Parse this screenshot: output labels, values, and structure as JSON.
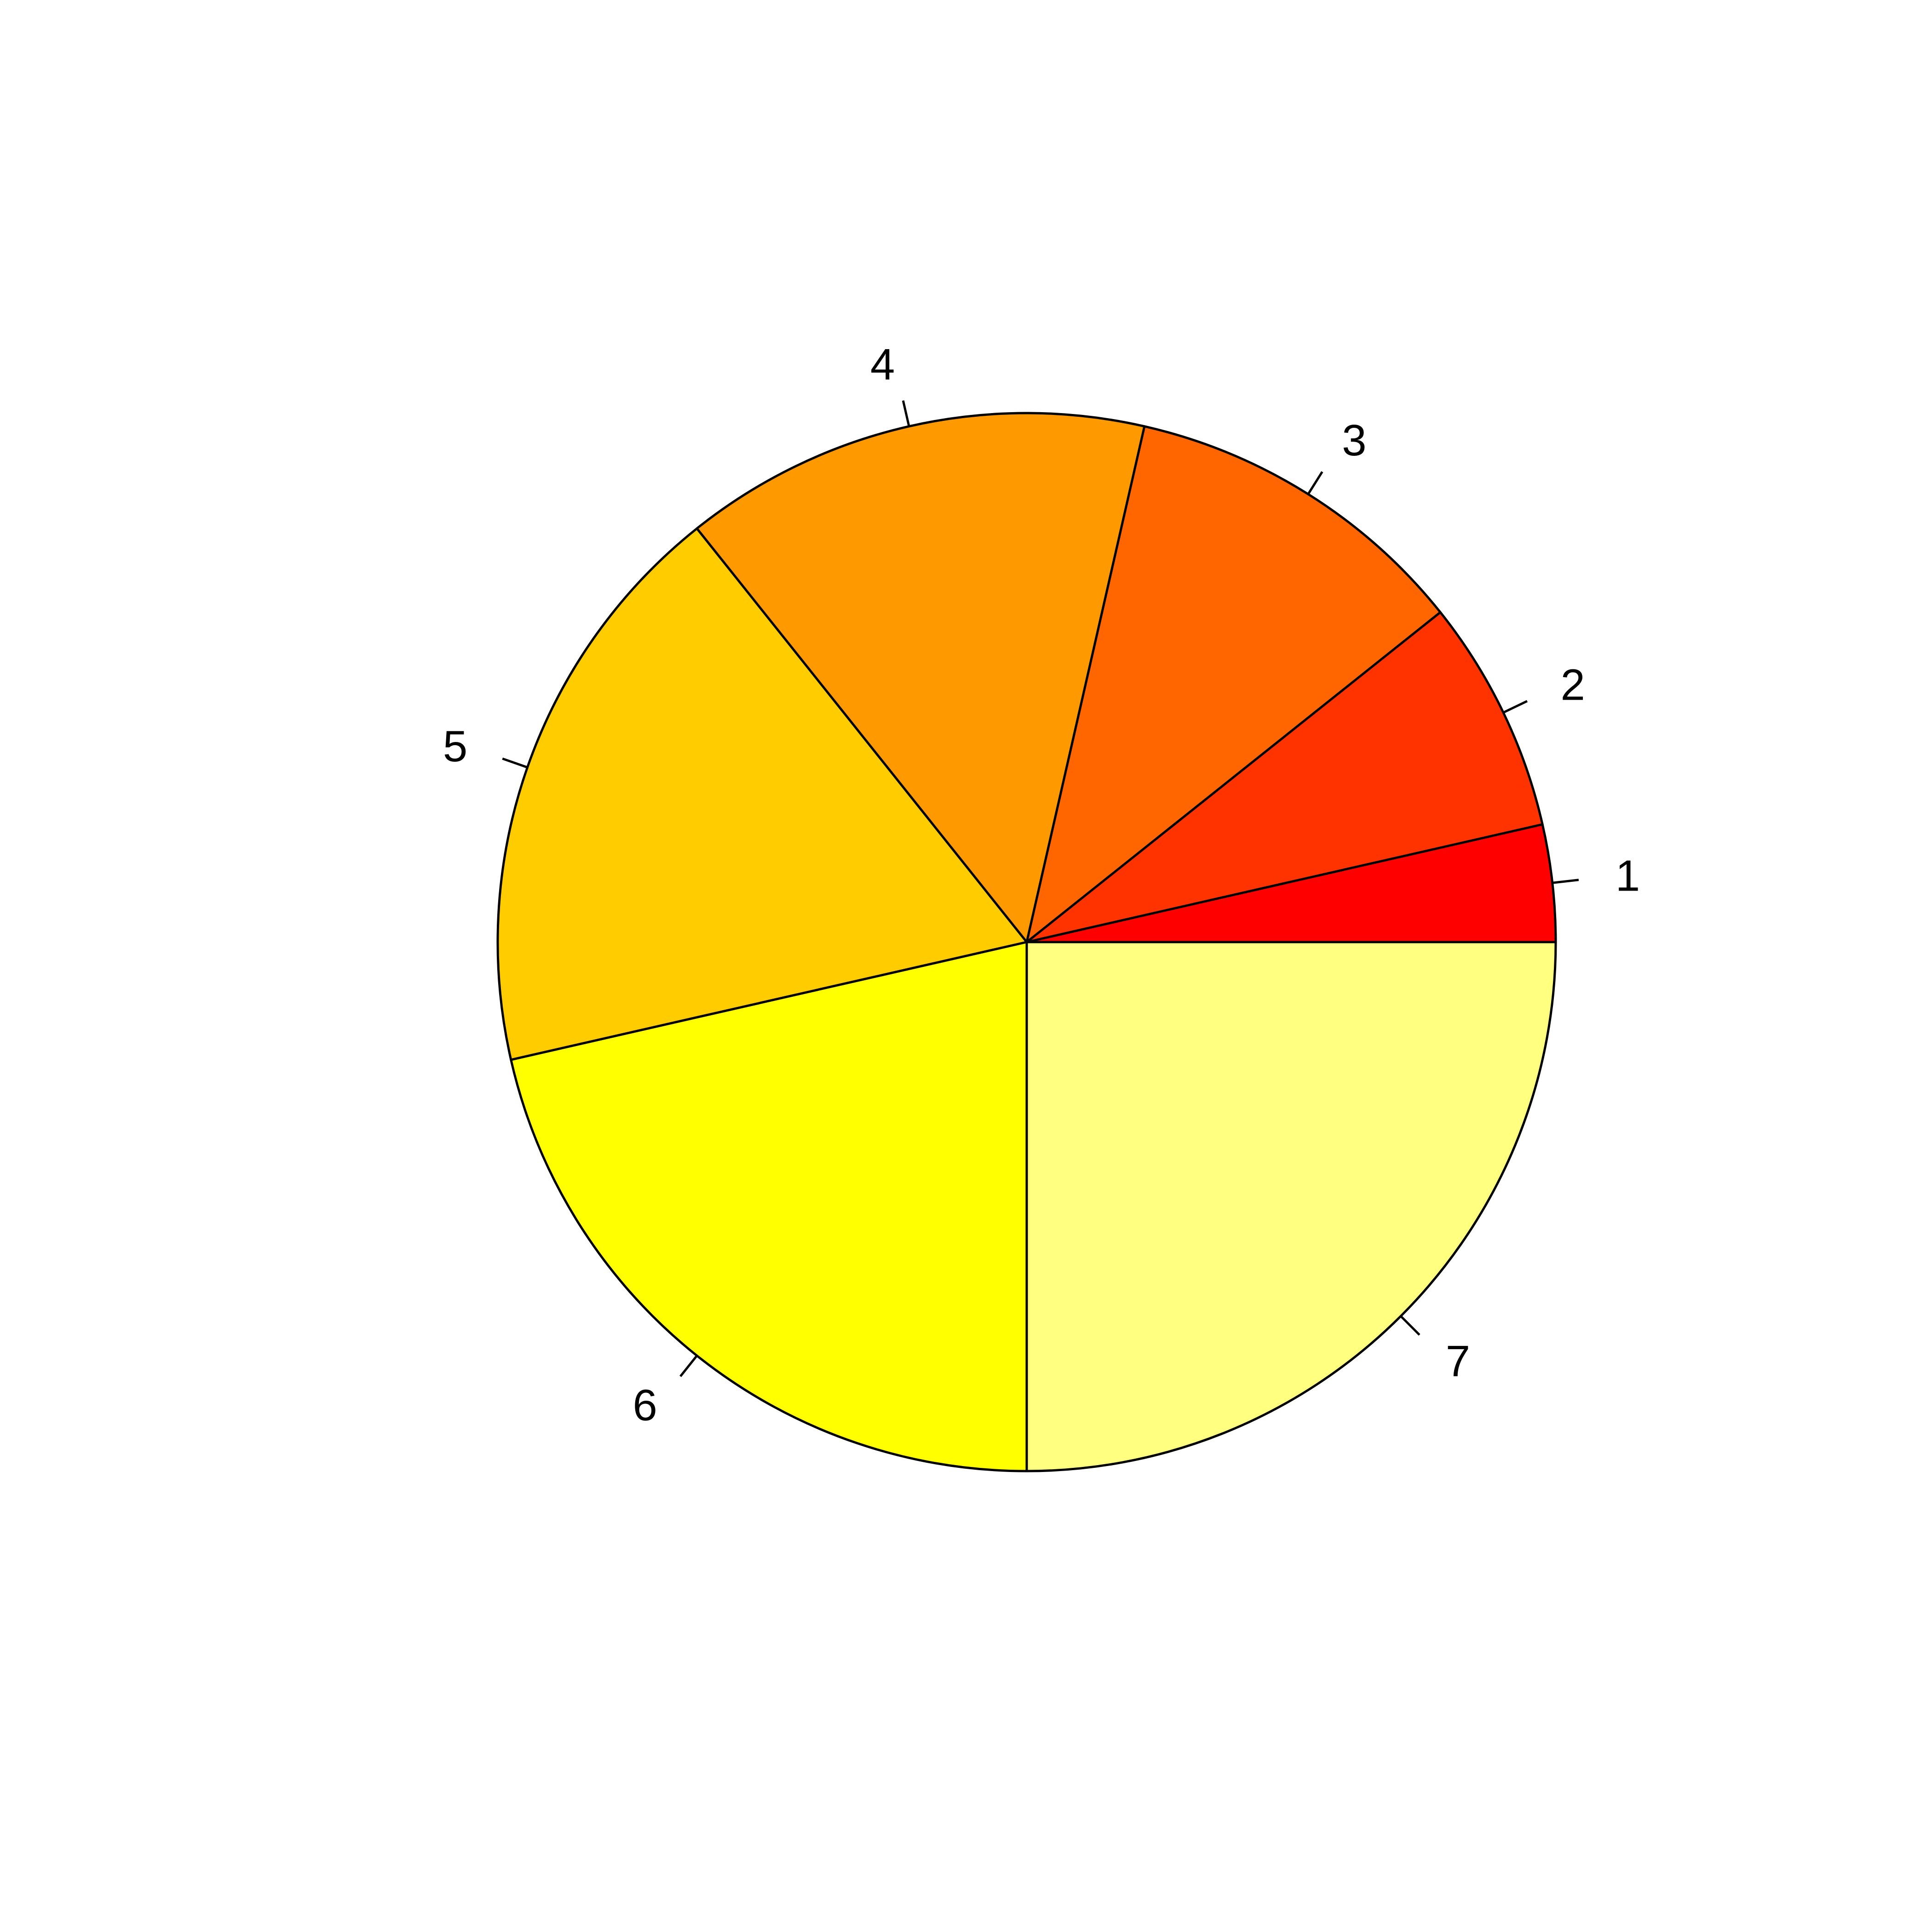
{
  "chart_data": {
    "type": "pie",
    "direction": "counterclockwise",
    "start": "3 o'clock",
    "categories": [
      "1",
      "2",
      "3",
      "4",
      "5",
      "6",
      "7"
    ],
    "values": [
      1,
      2,
      3,
      4,
      5,
      6,
      7
    ],
    "colors": [
      "#FF0000",
      "#FF3300",
      "#FF6600",
      "#FF9900",
      "#FFCC00",
      "#FFFF00",
      "#FFFF80"
    ]
  }
}
